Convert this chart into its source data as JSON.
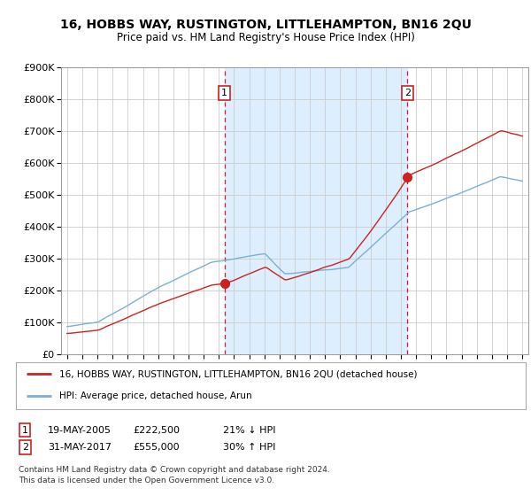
{
  "title": "16, HOBBS WAY, RUSTINGTON, LITTLEHAMPTON, BN16 2QU",
  "subtitle": "Price paid vs. HM Land Registry's House Price Index (HPI)",
  "hpi_color": "#7ab0d4",
  "price_color": "#cc2222",
  "sale1_x": 2005.38,
  "sale2_x": 2017.42,
  "sale1_price": 222500,
  "sale2_price": 555000,
  "legend_line1": "16, HOBBS WAY, RUSTINGTON, LITTLEHAMPTON, BN16 2QU (detached house)",
  "legend_line2": "HPI: Average price, detached house, Arun",
  "footer1": "Contains HM Land Registry data © Crown copyright and database right 2024.",
  "footer2": "This data is licensed under the Open Government Licence v3.0.",
  "sale1_date": "19-MAY-2005",
  "sale2_date": "31-MAY-2017",
  "sale1_price_str": "£222,500",
  "sale2_price_str": "£555,000",
  "sale1_pct": "21% ↓ HPI",
  "sale2_pct": "30% ↑ HPI",
  "ylim_max": 900000,
  "shade_color": "#ddeeff",
  "grid_color": "#cccccc",
  "bg_color": "#ffffff"
}
